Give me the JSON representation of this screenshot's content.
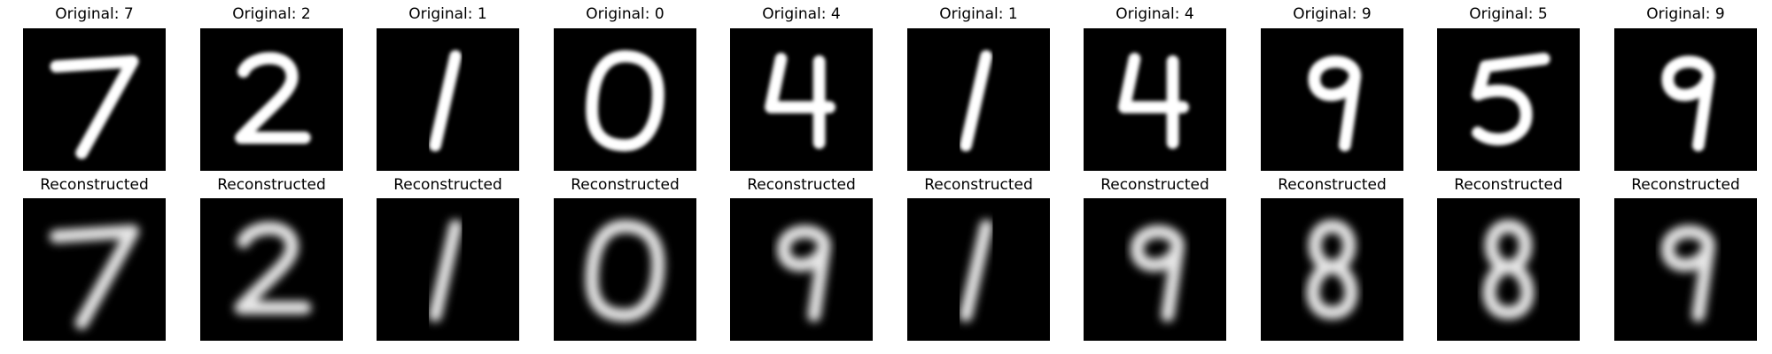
{
  "figure": {
    "originals": [
      {
        "title": "Original: 7",
        "digit": 7,
        "glyph": "7"
      },
      {
        "title": "Original: 2",
        "digit": 2,
        "glyph": "2"
      },
      {
        "title": "Original: 1",
        "digit": 1,
        "glyph": "1"
      },
      {
        "title": "Original: 0",
        "digit": 0,
        "glyph": "0"
      },
      {
        "title": "Original: 4",
        "digit": 4,
        "glyph": "4"
      },
      {
        "title": "Original: 1",
        "digit": 1,
        "glyph": "1"
      },
      {
        "title": "Original: 4",
        "digit": 4,
        "glyph": "4"
      },
      {
        "title": "Original: 9",
        "digit": 9,
        "glyph": "9"
      },
      {
        "title": "Original: 5",
        "digit": 5,
        "glyph": "5"
      },
      {
        "title": "Original: 9",
        "digit": 9,
        "glyph": "9"
      }
    ],
    "reconstructions": [
      {
        "title": "Reconstructed",
        "glyph": "7"
      },
      {
        "title": "Reconstructed",
        "glyph": "2"
      },
      {
        "title": "Reconstructed",
        "glyph": "1"
      },
      {
        "title": "Reconstructed",
        "glyph": "0"
      },
      {
        "title": "Reconstructed",
        "glyph": "9"
      },
      {
        "title": "Reconstructed",
        "glyph": "1"
      },
      {
        "title": "Reconstructed",
        "glyph": "9"
      },
      {
        "title": "Reconstructed",
        "glyph": "8"
      },
      {
        "title": "Reconstructed",
        "glyph": "8"
      },
      {
        "title": "Reconstructed",
        "glyph": "9"
      }
    ],
    "colors": {
      "background": "#000000",
      "stroke_original": "#ffffff",
      "stroke_reconstructed": "#e6e6e6"
    }
  }
}
